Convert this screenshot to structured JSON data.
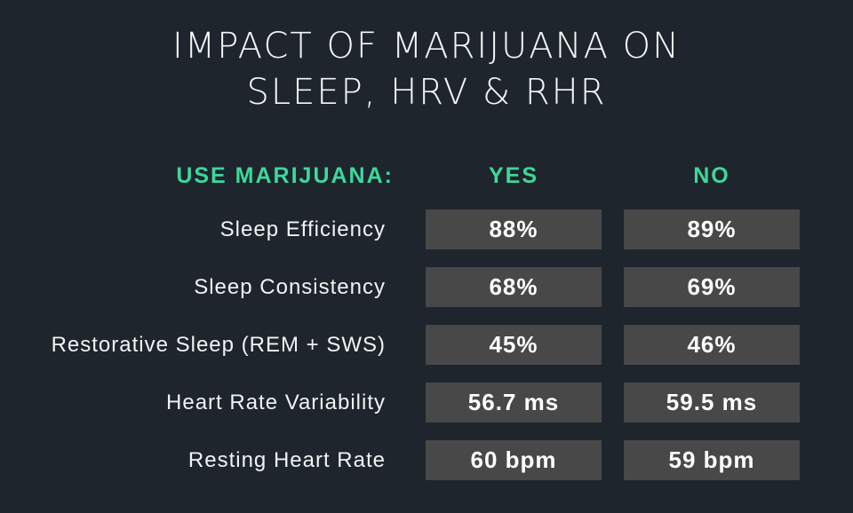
{
  "title": {
    "line1": "IMPACT OF MARIJUANA ON",
    "line2": "SLEEP, HRV & RHR"
  },
  "header": {
    "label": "USE MARIJUANA:",
    "yes": "YES",
    "no": "NO"
  },
  "rows": [
    {
      "label": "Sleep Efficiency",
      "yes": "88%",
      "no": "89%"
    },
    {
      "label": "Sleep Consistency",
      "yes": "68%",
      "no": "69%"
    },
    {
      "label": "Restorative Sleep (REM + SWS)",
      "yes": "45%",
      "no": "46%"
    },
    {
      "label": "Heart Rate Variability",
      "yes": "56.7 ms",
      "no": "59.5 ms"
    },
    {
      "label": "Resting Heart Rate",
      "yes": "60 bpm",
      "no": "59 bpm"
    }
  ],
  "colors": {
    "background": "#1f252c",
    "accent": "#3dd89a",
    "cell": "#484849"
  }
}
